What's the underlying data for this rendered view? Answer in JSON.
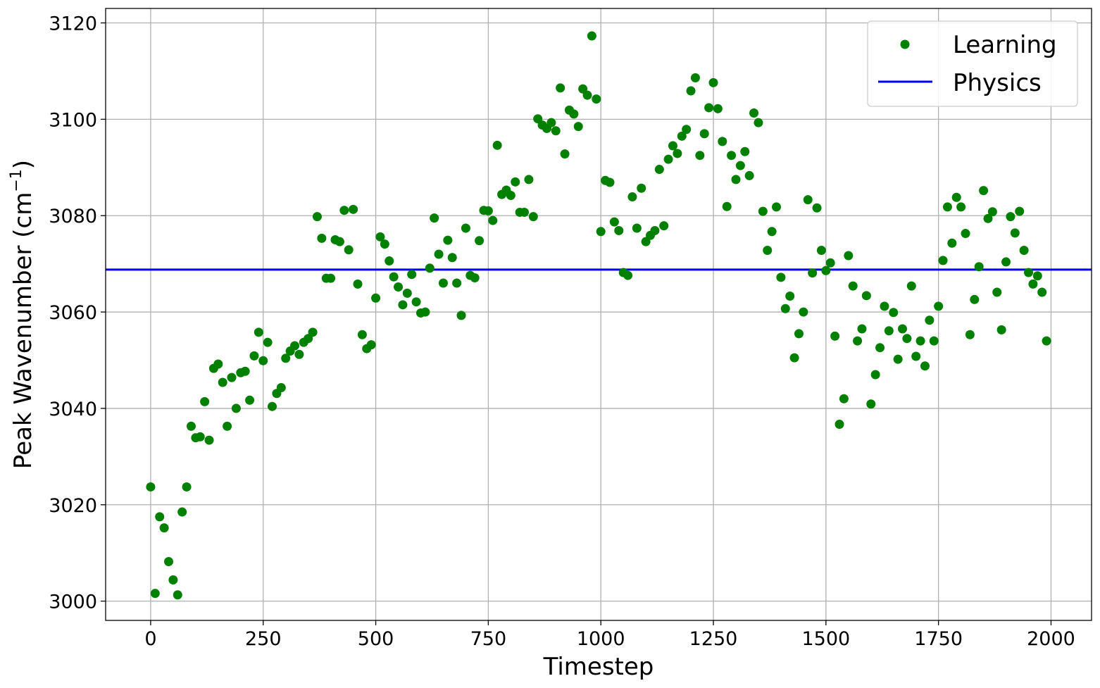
{
  "chart_data": {
    "type": "scatter",
    "xlabel": "Timestep",
    "ylabel": "Peak Wavenumber (cm",
    "ylabel_superscript": "−1",
    "ylabel_suffix": ")",
    "xlim": [
      -100,
      2090
    ],
    "ylim": [
      2996,
      3123
    ],
    "xticks": [
      0,
      250,
      500,
      750,
      1000,
      1250,
      1500,
      1750,
      2000
    ],
    "yticks": [
      3000,
      3020,
      3040,
      3060,
      3080,
      3100,
      3120
    ],
    "grid": true,
    "legend": {
      "placement": "top-right",
      "entries": [
        "Learning",
        "Physics"
      ]
    },
    "colors": {
      "learning": "#008000",
      "physics": "#0000ff"
    },
    "series": [
      {
        "name": "Learning",
        "kind": "scatter",
        "x": [
          0,
          10,
          20,
          30,
          40,
          50,
          60,
          70,
          80,
          90,
          100,
          110,
          120,
          130,
          140,
          150,
          160,
          170,
          180,
          190,
          200,
          210,
          220,
          230,
          240,
          250,
          260,
          270,
          280,
          290,
          300,
          310,
          320,
          330,
          340,
          350,
          360,
          370,
          380,
          390,
          400,
          410,
          420,
          430,
          440,
          450,
          460,
          470,
          480,
          490,
          500,
          510,
          520,
          530,
          540,
          550,
          560,
          570,
          580,
          590,
          600,
          610,
          620,
          630,
          640,
          650,
          660,
          670,
          680,
          690,
          700,
          710,
          720,
          730,
          740,
          750,
          760,
          770,
          780,
          790,
          800,
          810,
          820,
          830,
          840,
          850,
          860,
          870,
          880,
          890,
          900,
          910,
          920,
          930,
          940,
          950,
          960,
          970,
          980,
          990,
          1000,
          1010,
          1020,
          1030,
          1040,
          1050,
          1060,
          1070,
          1080,
          1090,
          1100,
          1110,
          1120,
          1130,
          1140,
          1150,
          1160,
          1170,
          1180,
          1190,
          1200,
          1210,
          1220,
          1230,
          1240,
          1250,
          1260,
          1270,
          1280,
          1290,
          1300,
          1310,
          1320,
          1330,
          1340,
          1350,
          1360,
          1370,
          1380,
          1390,
          1400,
          1410,
          1420,
          1430,
          1440,
          1450,
          1460,
          1470,
          1480,
          1490,
          1500,
          1510,
          1520,
          1530,
          1540,
          1550,
          1560,
          1570,
          1580,
          1590,
          1600,
          1610,
          1620,
          1630,
          1640,
          1650,
          1660,
          1670,
          1680,
          1690,
          1700,
          1710,
          1720,
          1730,
          1740,
          1750,
          1760,
          1770,
          1780,
          1790,
          1800,
          1810,
          1820,
          1830,
          1840,
          1850,
          1860,
          1870,
          1880,
          1890,
          1900,
          1910,
          1920,
          1930,
          1940,
          1950,
          1960,
          1970,
          1980,
          1990
        ],
        "y": [
          3023.7,
          3001.6,
          3017.5,
          3015.2,
          3008.2,
          3004.4,
          3001.3,
          3018.5,
          3023.7,
          3036.3,
          3033.9,
          3034.1,
          3041.4,
          3033.4,
          3048.3,
          3049.2,
          3045.4,
          3036.3,
          3046.4,
          3040.0,
          3047.4,
          3047.7,
          3041.7,
          3050.9,
          3055.8,
          3049.9,
          3053.7,
          3040.4,
          3043.1,
          3044.3,
          3050.4,
          3051.9,
          3053.0,
          3051.2,
          3053.7,
          3054.5,
          3055.8,
          3079.8,
          3075.3,
          3067.0,
          3067.0,
          3075.0,
          3074.6,
          3081.1,
          3072.9,
          3081.3,
          3065.8,
          3055.3,
          3052.4,
          3053.2,
          3062.9,
          3075.6,
          3074.1,
          3070.6,
          3067.3,
          3065.2,
          3061.5,
          3063.9,
          3067.8,
          3062.1,
          3059.8,
          3060.0,
          3069.1,
          3079.5,
          3072.0,
          3066.0,
          3074.9,
          3071.3,
          3066.0,
          3059.3,
          3077.4,
          3067.6,
          3067.1,
          3074.8,
          3081.1,
          3081.0,
          3079.0,
          3094.6,
          3084.4,
          3085.3,
          3084.2,
          3087.0,
          3080.7,
          3080.7,
          3087.5,
          3079.8,
          3100.1,
          3098.8,
          3098.1,
          3099.3,
          3097.6,
          3106.5,
          3092.8,
          3101.9,
          3101.1,
          3098.5,
          3106.3,
          3105.0,
          3117.3,
          3104.2,
          3076.7,
          3087.3,
          3086.9,
          3078.7,
          3076.9,
          3068.2,
          3067.6,
          3083.9,
          3077.4,
          3085.7,
          3074.6,
          3075.9,
          3076.9,
          3089.6,
          3077.9,
          3091.7,
          3094.5,
          3092.9,
          3096.5,
          3097.9,
          3105.9,
          3108.6,
          3092.5,
          3097.0,
          3102.4,
          3107.6,
          3102.2,
          3095.4,
          3081.9,
          3092.5,
          3087.5,
          3090.4,
          3093.3,
          3088.3,
          3101.3,
          3099.3,
          3080.9,
          3072.8,
          3076.7,
          3081.8,
          3067.2,
          3060.7,
          3063.3,
          3050.5,
          3055.5,
          3060.0,
          3083.3,
          3068.1,
          3081.6,
          3072.8,
          3068.6,
          3070.2,
          3055.0,
          3036.7,
          3042.0,
          3071.7,
          3065.4,
          3054.0,
          3056.5,
          3063.4,
          3040.9,
          3047.0,
          3052.6,
          3061.2,
          3056.1,
          3059.9,
          3050.2,
          3056.5,
          3054.5,
          3065.4,
          3050.8,
          3054.0,
          3048.8,
          3058.3,
          3054.0,
          3061.2,
          3070.7,
          3081.8,
          3074.3,
          3083.8,
          3081.8,
          3076.3,
          3055.3,
          3062.6,
          3069.4,
          3085.2,
          3079.4,
          3080.8,
          3064.1,
          3056.3,
          3070.4,
          3079.8,
          3076.4,
          3080.9,
          3072.8,
          3068.2,
          3065.8,
          3067.5,
          3064.1,
          3054.0
        ]
      },
      {
        "name": "Physics",
        "kind": "hline",
        "y": 3068.8
      }
    ]
  }
}
